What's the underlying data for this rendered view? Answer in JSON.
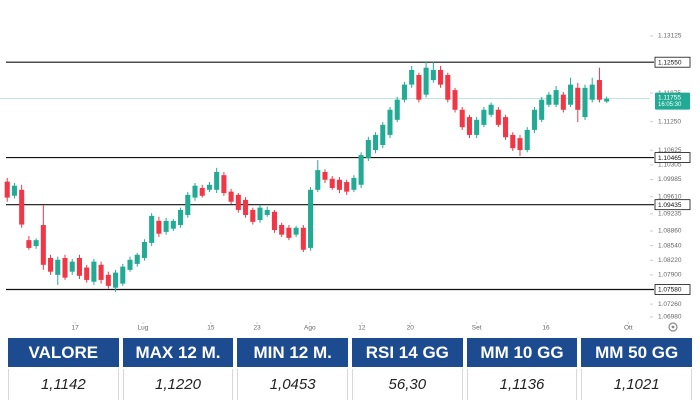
{
  "chart_data": {
    "type": "candlestick",
    "up_color": "#22ab94",
    "down_color": "#f23645",
    "open": [
      1.0994,
      1.0963,
      1.0976,
      1.0866,
      1.0853,
      1.0899,
      1.0827,
      1.079,
      1.0827,
      1.0797,
      1.0827,
      1.0806,
      1.0775,
      1.0812,
      1.079,
      1.0762,
      1.0771,
      1.0801,
      1.0814,
      1.0827,
      1.086,
      1.0908,
      1.0884,
      1.0891,
      1.0899,
      1.0921,
      1.0959,
      1.098,
      1.0976,
      1.0976,
      1.1008,
      1.0972,
      1.0965,
      1.0954,
      1.0932,
      1.091,
      1.0921,
      1.0928,
      1.0899,
      1.0893,
      1.0878,
      1.0893,
      1.0849,
      1.0976,
      1.1015,
      1.1,
      1.0998,
      1.0993,
      1.0976,
      1.0987,
      1.1045,
      1.1063,
      1.1074,
      1.1096,
      1.1129,
      1.1173,
      1.1206,
      1.1227,
      1.1184,
      1.1216,
      1.1238,
      1.1227,
      1.1194,
      1.1151,
      1.1135,
      1.1096,
      1.1118,
      1.114,
      1.1151,
      1.1135,
      1.1096,
      1.1089,
      1.1063,
      1.1107,
      1.1129,
      1.1162,
      1.1162,
      1.1184,
      1.1162,
      1.1199,
      1.1135,
      1.1173,
      1.1216,
      1.1169
    ],
    "high": [
      1.1002,
      1.0991,
      1.0987,
      1.0875,
      1.087,
      1.0943,
      1.0834,
      1.083,
      1.0834,
      1.0825,
      1.0834,
      1.0812,
      1.0825,
      1.0819,
      1.0797,
      1.0801,
      1.0814,
      1.083,
      1.0838,
      1.0868,
      1.0925,
      1.0917,
      1.0915,
      1.0912,
      1.0937,
      1.0971,
      1.0991,
      1.0987,
      1.0993,
      1.1024,
      1.1015,
      1.0978,
      1.0969,
      1.096,
      1.0937,
      1.0943,
      1.0939,
      1.0932,
      1.0904,
      1.0899,
      1.0897,
      1.0899,
      1.0982,
      1.1041,
      1.1021,
      1.1006,
      1.1004,
      1.0998,
      1.1008,
      1.1058,
      1.1092,
      1.1102,
      1.1124,
      1.1157,
      1.1179,
      1.1212,
      1.1247,
      1.1232,
      1.1256,
      1.1256,
      1.1247,
      1.1232,
      1.1199,
      1.1157,
      1.114,
      1.1135,
      1.1157,
      1.1167,
      1.1157,
      1.114,
      1.1102,
      1.1096,
      1.1113,
      1.1157,
      1.1179,
      1.119,
      1.1203,
      1.119,
      1.1221,
      1.121,
      1.1206,
      1.1221,
      1.1243,
      1.118
    ],
    "low": [
      1.095,
      1.0957,
      1.0893,
      1.0845,
      1.0847,
      1.0801,
      1.079,
      1.0768,
      1.0779,
      1.079,
      1.0781,
      1.0773,
      1.0768,
      1.0771,
      1.076,
      1.0753,
      1.0766,
      1.0797,
      1.0808,
      1.0821,
      1.0853,
      1.0873,
      1.0878,
      1.0886,
      1.0893,
      1.0915,
      1.0952,
      1.0959,
      1.0971,
      1.0969,
      1.0963,
      1.0945,
      1.0926,
      1.0915,
      1.09,
      1.0904,
      1.0917,
      1.0882,
      1.0873,
      1.0866,
      1.0873,
      1.084,
      1.0843,
      1.0971,
      1.0991,
      1.0976,
      1.0969,
      1.0965,
      1.0971,
      1.098,
      1.1039,
      1.1056,
      1.1067,
      1.1089,
      1.1124,
      1.1167,
      1.1199,
      1.1167,
      1.1178,
      1.121,
      1.1199,
      1.1167,
      1.1145,
      1.1107,
      1.1089,
      1.1089,
      1.1113,
      1.1135,
      1.1113,
      1.1085,
      1.1061,
      1.105,
      1.1058,
      1.11,
      1.1124,
      1.1157,
      1.1157,
      1.1145,
      1.1157,
      1.1124,
      1.1129,
      1.1167,
      1.1167,
      1.1166
    ],
    "close": [
      1.0959,
      1.0985,
      1.09,
      1.0849,
      1.0866,
      1.0812,
      1.0797,
      1.0823,
      1.0784,
      1.0819,
      1.0788,
      1.0779,
      1.0819,
      1.0779,
      1.0766,
      1.0795,
      1.0808,
      1.0823,
      1.0834,
      1.0862,
      1.0919,
      1.088,
      1.0908,
      1.0908,
      1.0932,
      1.0965,
      1.0985,
      1.0963,
      1.0987,
      1.1015,
      1.0969,
      1.095,
      1.0932,
      1.0921,
      1.0906,
      1.0937,
      1.0932,
      1.0888,
      1.0878,
      1.0871,
      1.0893,
      1.0845,
      1.0976,
      1.1019,
      1.0998,
      1.098,
      1.0976,
      1.0972,
      1.1002,
      1.1052,
      1.1085,
      1.1096,
      1.1118,
      1.1151,
      1.1173,
      1.1206,
      1.1238,
      1.1173,
      1.1243,
      1.1238,
      1.1206,
      1.1173,
      1.1151,
      1.1113,
      1.1096,
      1.1129,
      1.1151,
      1.1162,
      1.1118,
      1.1091,
      1.1067,
      1.1063,
      1.1107,
      1.1151,
      1.1173,
      1.1184,
      1.1194,
      1.1151,
      1.1206,
      1.1151,
      1.1199,
      1.1206,
      1.1173,
      1.1175
    ],
    "xlim": [
      -1,
      89
    ],
    "xticks": [
      {
        "value": 9.4,
        "label": "17"
      },
      {
        "value": 18.8,
        "label": "Lug"
      },
      {
        "value": 28.2,
        "label": "15"
      },
      {
        "value": 34.6,
        "label": "23"
      },
      {
        "value": 41.9,
        "label": "Ago"
      },
      {
        "value": 49.1,
        "label": "12"
      },
      {
        "value": 55.8,
        "label": "20"
      },
      {
        "value": 65,
        "label": "Set"
      },
      {
        "value": 74.6,
        "label": "16"
      },
      {
        "value": 86,
        "label": "Ott"
      }
    ],
    "ylim": [
      1.0687,
      1.1391
    ],
    "yticks": [
      1.13125,
      1.11875,
      {
        "value": 1.1125,
        "label": "1.11250"
      },
      1.10625,
      1.10305,
      1.09985,
      {
        "value": 1.0961,
        "label": "1.09610"
      },
      1.09235,
      {
        "value": 1.0886,
        "label": "1.08860"
      },
      {
        "value": 1.0854,
        "label": "1.08540"
      },
      {
        "value": 1.0822,
        "label": "1.08220"
      },
      {
        "value": 1.079,
        "label": "1.07900"
      },
      {
        "value": 1.0726,
        "label": "1.07260"
      },
      {
        "value": 1.0698,
        "label": "1.06980"
      }
    ],
    "grid": false,
    "levels": [
      {
        "value": 1.1255,
        "label": "1.12550"
      },
      {
        "value": 1.10465,
        "label": "1.10465"
      },
      {
        "value": 1.09435,
        "label": "1.09435"
      },
      {
        "value": 1.0758,
        "label": "1.07580"
      }
    ],
    "level_color": "#111111",
    "last_price": {
      "value": 1.11755,
      "time": "16:05:30"
    }
  },
  "table": {
    "header": [
      "VALORE",
      "MAX 12 M.",
      "MIN 12 M.",
      "RSI 14 GG",
      "MM 10 GG",
      "MM 50 GG"
    ],
    "rows": [
      [
        "1,1142",
        "1,1220",
        "1,0453",
        "56,30",
        "1,1136",
        "1,1021"
      ]
    ]
  }
}
